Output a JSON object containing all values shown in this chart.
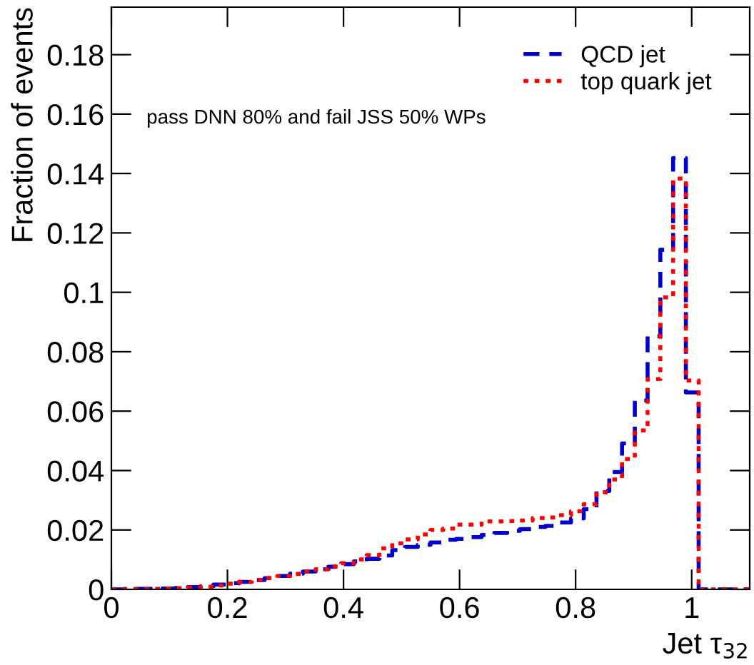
{
  "chart_data": {
    "type": "histogram",
    "xlabel": "Jet τ$_{32}$",
    "ylabel": "Fraction of events",
    "annotations": [
      "pass DNN 80% and fail JSS 50% WPs"
    ],
    "bins": [
      0,
      0.022,
      0.044,
      0.066,
      0.088,
      0.11,
      0.132,
      0.154,
      0.176,
      0.198,
      0.22,
      0.242,
      0.264,
      0.286,
      0.308,
      0.33,
      0.352,
      0.374,
      0.396,
      0.418,
      0.44,
      0.462,
      0.484,
      0.506,
      0.528,
      0.55,
      0.572,
      0.594,
      0.616,
      0.638,
      0.66,
      0.682,
      0.704,
      0.726,
      0.748,
      0.77,
      0.792,
      0.814,
      0.836,
      0.858,
      0.88,
      0.902,
      0.924,
      0.946,
      0.968,
      0.99,
      1.012,
      1.034,
      1.056,
      1.078,
      1.1
    ],
    "series": [
      {
        "name": "QCD jet",
        "color": "#0000cc",
        "line_style": "dashed",
        "values": [
          0,
          0.0001,
          0.0002,
          0.0002,
          0.0003,
          0.0005,
          0.0008,
          0.0011,
          0.0016,
          0.0021,
          0.0025,
          0.0031,
          0.0038,
          0.0045,
          0.0053,
          0.006,
          0.0068,
          0.0076,
          0.0085,
          0.0094,
          0.0103,
          0.0114,
          0.0132,
          0.0143,
          0.015,
          0.0158,
          0.0167,
          0.017,
          0.0176,
          0.0183,
          0.019,
          0.0197,
          0.0203,
          0.021,
          0.0214,
          0.0225,
          0.0239,
          0.027,
          0.0331,
          0.0395,
          0.0491,
          0.0636,
          0.0852,
          0.1143,
          0.1452,
          0.0663,
          0,
          0,
          0,
          0
        ]
      },
      {
        "name": "top quark jet",
        "color": "#ff0000",
        "line_style": "dotted",
        "values": [
          0,
          0.0001,
          0.0001,
          0.0002,
          0.0003,
          0.0004,
          0.0006,
          0.0009,
          0.0013,
          0.0019,
          0.0025,
          0.0031,
          0.0038,
          0.0045,
          0.0052,
          0.006,
          0.0068,
          0.0077,
          0.0088,
          0.0101,
          0.0115,
          0.0138,
          0.0155,
          0.0168,
          0.0185,
          0.02,
          0.0205,
          0.0218,
          0.0218,
          0.0229,
          0.0229,
          0.023,
          0.0232,
          0.024,
          0.0242,
          0.025,
          0.0263,
          0.0287,
          0.0327,
          0.037,
          0.0439,
          0.0535,
          0.0708,
          0.0983,
          0.1383,
          0.0703,
          0,
          0,
          0,
          0
        ]
      }
    ],
    "xlim": [
      0,
      1.1
    ],
    "xticks": [
      0,
      0.2,
      0.4,
      0.6,
      0.8,
      1
    ],
    "ylim": [
      0,
      0.196
    ],
    "yticks": [
      0,
      0.02,
      0.04,
      0.06,
      0.08,
      0.1,
      0.12,
      0.14,
      0.16,
      0.18
    ],
    "grid": false,
    "legend": "top right"
  }
}
